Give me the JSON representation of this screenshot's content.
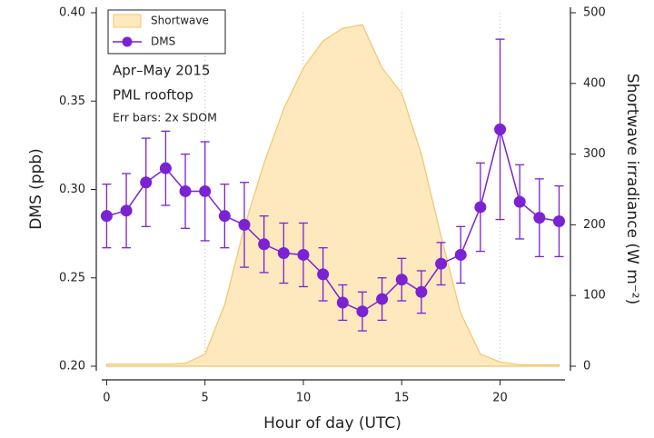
{
  "chart_data": {
    "type": "line",
    "annotations": [
      "Apr–May 2015",
      "PML rooftop",
      "Err bars: 2x SDOM"
    ],
    "xlabel": "Hour of day (UTC)",
    "ylabel": "DMS (ppb)",
    "y2label": "Shortwave irradiance (W m⁻²)",
    "x": [
      0,
      1,
      2,
      3,
      4,
      5,
      6,
      7,
      8,
      9,
      10,
      11,
      12,
      13,
      14,
      15,
      16,
      17,
      18,
      19,
      20,
      21,
      22,
      23
    ],
    "series": [
      {
        "name": "Shortwave",
        "type": "area",
        "axis": "y2",
        "color": "#fde9bd",
        "edge_color": "#f2c56d",
        "values": [
          3,
          3,
          3,
          3,
          4,
          17,
          87,
          197,
          287,
          364,
          422,
          460,
          478,
          483,
          422,
          386,
          300,
          184,
          75,
          17,
          6,
          2,
          2,
          2
        ]
      },
      {
        "name": "DMS",
        "type": "line",
        "color": "#7b22d2",
        "values": [
          0.285,
          0.288,
          0.304,
          0.312,
          0.299,
          0.299,
          0.285,
          0.28,
          0.269,
          0.264,
          0.263,
          0.252,
          0.236,
          0.231,
          0.238,
          0.249,
          0.242,
          0.258,
          0.263,
          0.29,
          0.334,
          0.293,
          0.284,
          0.282
        ],
        "errors": [
          0.018,
          0.021,
          0.025,
          0.021,
          0.021,
          0.028,
          0.018,
          0.024,
          0.016,
          0.017,
          0.018,
          0.015,
          0.01,
          0.011,
          0.012,
          0.012,
          0.012,
          0.012,
          0.016,
          0.025,
          0.051,
          0.021,
          0.022,
          0.02
        ]
      }
    ],
    "xlim": [
      -0.25,
      23.3
    ],
    "xticks": [
      0,
      5,
      10,
      15,
      20
    ],
    "ylim": [
      0.2,
      0.4
    ],
    "yticks": [
      {
        "value": 0.2,
        "label": "0.20"
      },
      0.25,
      {
        "value": 0.3,
        "label": "0.30"
      },
      0.35,
      {
        "value": 0.4,
        "label": "0.40"
      }
    ],
    "y2lim": [
      0,
      500
    ],
    "y2ticks": [
      0,
      100,
      200,
      300,
      400,
      500
    ],
    "x_grid": true,
    "legend": "upper left"
  }
}
